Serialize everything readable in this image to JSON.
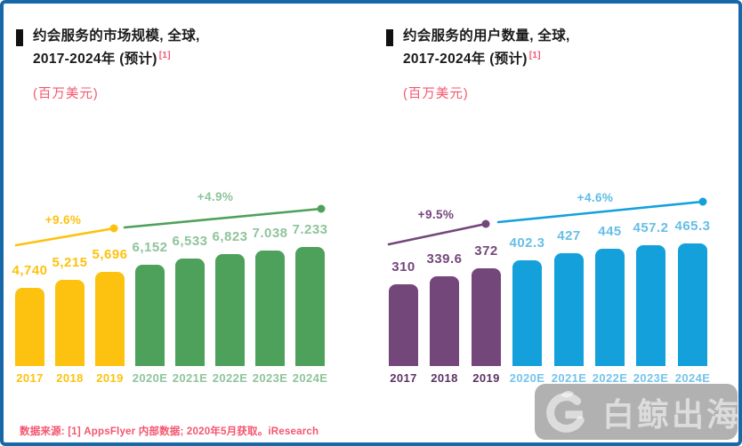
{
  "page": {
    "footer_source": "数据来源: [1] AppsFlyer 内部数据; 2020年5月获取。iResearch",
    "watermark_text": "白鲸出海",
    "colors": {
      "page_border": "#1768A8",
      "accent_pink": "#F4566E",
      "title_text": "#1B1B1B",
      "watermark_bg_gray": "#9E9E9E"
    }
  },
  "chart_data": [
    {
      "type": "bar",
      "title": "约会服务的市场规模, 全球, 2017-2024年 (预计)",
      "title_line1": "约会服务的市场规模, 全球,",
      "title_line2": "2017-2024年 (预计)",
      "footnote_ref": "[1]",
      "unit_label": "(百万美元)",
      "categories": [
        "2017",
        "2018",
        "2019",
        "2020E",
        "2021E",
        "2022E",
        "2023E",
        "2024E"
      ],
      "values": [
        4740,
        5215,
        5696,
        6152,
        6533,
        6823,
        7038,
        7233
      ],
      "value_labels": [
        "4,740",
        "5,215",
        "5,696",
        "6,152",
        "6,533",
        "6,823",
        "7.038",
        "7.233"
      ],
      "ylim": [
        0,
        7233
      ],
      "grid": false,
      "legend": false,
      "segments": [
        {
          "name": "historical",
          "range": [
            0,
            2
          ],
          "bar_color": "#FDC20F",
          "value_label_color": "#FDC20F",
          "tick_color": "#FDC20F"
        },
        {
          "name": "estimated",
          "range": [
            3,
            7
          ],
          "bar_color": "#4EA15B",
          "value_label_color": "#8FC49B",
          "tick_color": "#8FC49B"
        }
      ],
      "growth_annotations": [
        {
          "label": "+9.6%",
          "over": "2017-2019",
          "line_color": "#FDC20F",
          "label_color": "#FDC20F"
        },
        {
          "label": "+4.9%",
          "over": "2020E-2024E",
          "line_color": "#4EA15B",
          "label_color": "#8FC49B"
        }
      ]
    },
    {
      "type": "bar",
      "title": "约会服务的用户数量, 全球, 2017-2024年 (预计)",
      "title_line1": "约会服务的用户数量, 全球,",
      "title_line2": "2017-2024年 (预计)",
      "footnote_ref": "[1]",
      "unit_label": "(百万美元)",
      "categories": [
        "2017",
        "2018",
        "2019",
        "2020E",
        "2021E",
        "2022E",
        "2023E",
        "2024E"
      ],
      "values": [
        310,
        339.6,
        372,
        402.3,
        427,
        445,
        457.2,
        465.3
      ],
      "value_labels": [
        "310",
        "339.6",
        "372",
        "402.3",
        "427",
        "445",
        "457.2",
        "465.3"
      ],
      "ylim": [
        0,
        465.3
      ],
      "grid": false,
      "legend": false,
      "segments": [
        {
          "name": "historical",
          "range": [
            0,
            2
          ],
          "bar_color": "#74477B",
          "value_label_color": "#74477B",
          "tick_color": "#5A3263"
        },
        {
          "name": "estimated",
          "range": [
            3,
            7
          ],
          "bar_color": "#14A1DB",
          "value_label_color": "#66BEE7",
          "tick_color": "#74C4EA"
        }
      ],
      "growth_annotations": [
        {
          "label": "+9.5%",
          "over": "2017-2019",
          "line_color": "#74477B",
          "label_color": "#74477B"
        },
        {
          "label": "+4.6%",
          "over": "2020E-2024E",
          "line_color": "#14A1DB",
          "label_color": "#5FBCE5"
        }
      ]
    }
  ]
}
